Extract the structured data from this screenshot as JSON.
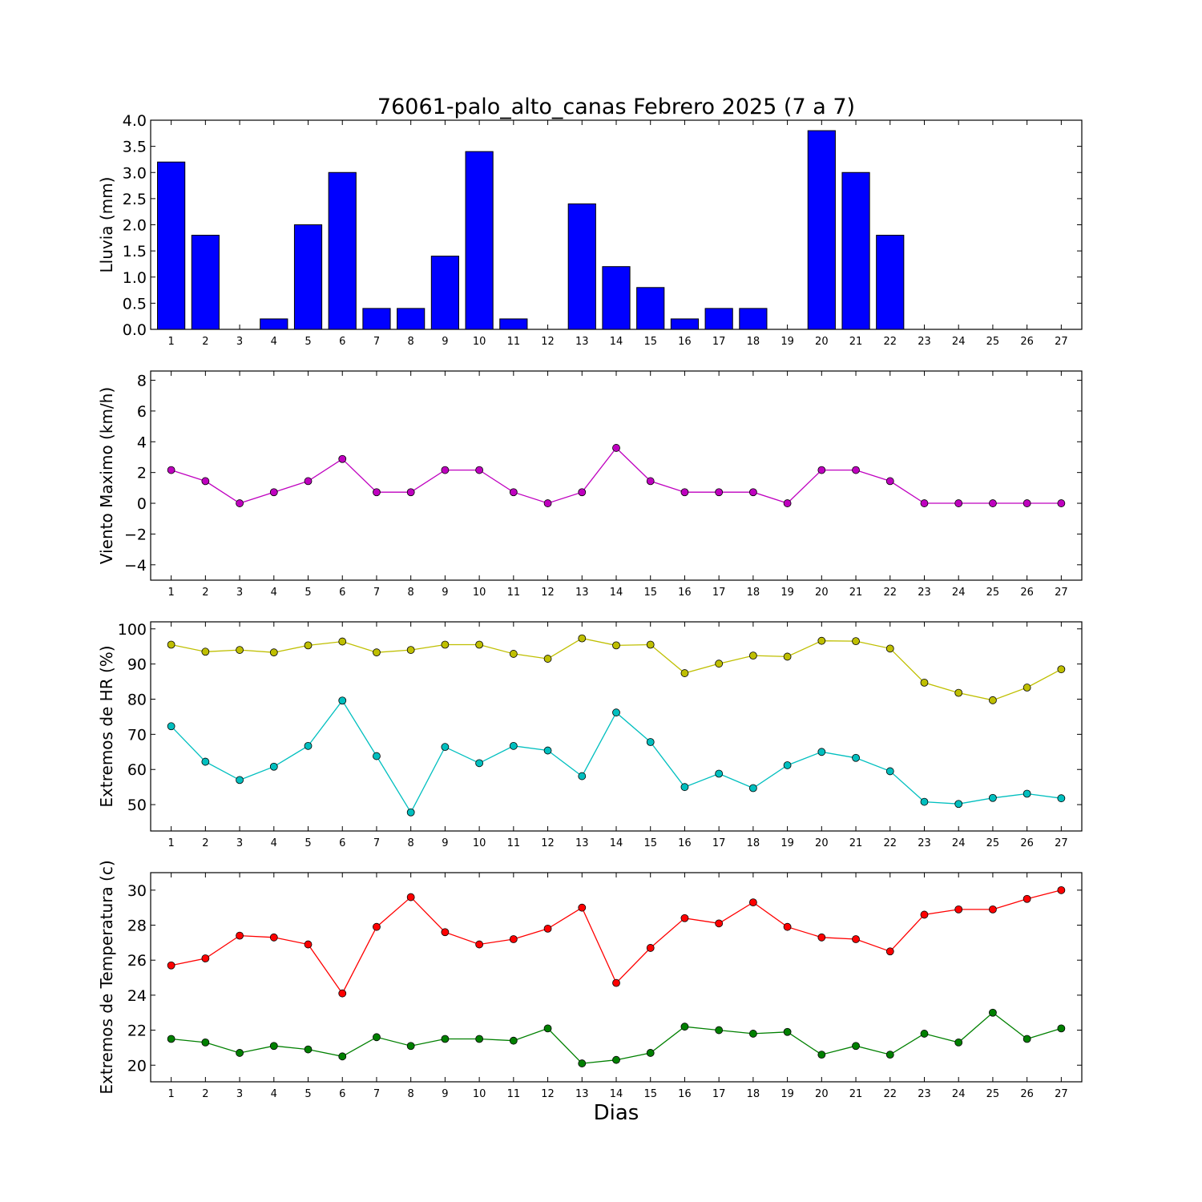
{
  "title": "76061-palo_alto_canas Febrero 2025  (7 a 7)",
  "xlabel": "Dias",
  "chart_data": [
    {
      "type": "bar",
      "ylabel": "Lluvia (mm)",
      "ylim": [
        0,
        4
      ],
      "yticks": [
        "0.0",
        "0.5",
        "1.0",
        "1.5",
        "2.0",
        "2.5",
        "3.0",
        "3.5",
        "4.0"
      ],
      "categories": [
        "1",
        "2",
        "3",
        "4",
        "5",
        "6",
        "7",
        "8",
        "9",
        "10",
        "11",
        "12",
        "13",
        "14",
        "15",
        "16",
        "17",
        "18",
        "19",
        "20",
        "21",
        "22",
        "23",
        "24",
        "25",
        "26",
        "27"
      ],
      "series": [
        {
          "color": "#0000ff",
          "values": [
            3.2,
            1.8,
            0,
            0.2,
            2.0,
            3.0,
            0.4,
            0.4,
            1.4,
            3.4,
            0.2,
            0,
            2.4,
            1.2,
            0.8,
            0.2,
            0.4,
            0.4,
            0,
            3.8,
            3.0,
            1.8,
            0,
            0,
            0,
            0,
            0
          ]
        }
      ]
    },
    {
      "type": "line",
      "ylabel": "Viento Maximo (km/h)",
      "ylim": [
        -5,
        8.6
      ],
      "yticks": [
        "−4",
        "−2",
        "0",
        "2",
        "4",
        "6",
        "8"
      ],
      "ytick_values": [
        -4,
        -2,
        0,
        2,
        4,
        6,
        8
      ],
      "categories": [
        "1",
        "2",
        "3",
        "4",
        "5",
        "6",
        "7",
        "8",
        "9",
        "10",
        "11",
        "12",
        "13",
        "14",
        "15",
        "16",
        "17",
        "18",
        "19",
        "20",
        "21",
        "22",
        "23",
        "24",
        "25",
        "26",
        "27"
      ],
      "series": [
        {
          "color": "#bf00bf",
          "values": [
            2.16,
            1.44,
            0,
            0.72,
            1.44,
            2.88,
            0.72,
            0.72,
            2.16,
            2.16,
            0.72,
            0,
            0.72,
            3.6,
            1.44,
            0.72,
            0.72,
            0.72,
            0,
            2.16,
            2.16,
            1.44,
            0,
            0,
            0,
            0,
            0
          ]
        }
      ]
    },
    {
      "type": "line",
      "ylabel": "Extremos de HR (%)",
      "ylim": [
        42.5,
        102
      ],
      "yticks": [
        "50",
        "60",
        "70",
        "80",
        "90",
        "100"
      ],
      "ytick_values": [
        50,
        60,
        70,
        80,
        90,
        100
      ],
      "categories": [
        "1",
        "2",
        "3",
        "4",
        "5",
        "6",
        "7",
        "8",
        "9",
        "10",
        "11",
        "12",
        "13",
        "14",
        "15",
        "16",
        "17",
        "18",
        "19",
        "20",
        "21",
        "22",
        "23",
        "24",
        "25",
        "26",
        "27"
      ],
      "series": [
        {
          "color": "#bfbf00",
          "values": [
            95.5,
            93.5,
            94,
            93.3,
            95.3,
            96.4,
            93.3,
            94,
            95.5,
            95.5,
            92.9,
            91.5,
            97.3,
            95.3,
            95.5,
            87.4,
            90.1,
            92.4,
            92.1,
            96.6,
            96.5,
            94.4,
            84.7,
            81.8,
            79.7,
            83.3,
            88.5
          ]
        },
        {
          "color": "#00bfbf",
          "values": [
            72.3,
            62.2,
            57,
            60.8,
            66.7,
            79.6,
            63.8,
            47.8,
            66.4,
            61.8,
            66.7,
            65.4,
            58.1,
            76.2,
            67.8,
            55,
            58.8,
            54.7,
            61.2,
            65,
            63.3,
            59.5,
            50.8,
            50.2,
            51.9,
            53.1,
            51.8
          ]
        }
      ]
    },
    {
      "type": "line",
      "ylabel": "Extremos de Temperatura (c)",
      "ylim": [
        19.05,
        31
      ],
      "yticks": [
        "20",
        "22",
        "24",
        "26",
        "28",
        "30"
      ],
      "ytick_values": [
        20,
        22,
        24,
        26,
        28,
        30
      ],
      "categories": [
        "1",
        "2",
        "3",
        "4",
        "5",
        "6",
        "7",
        "8",
        "9",
        "10",
        "11",
        "12",
        "13",
        "14",
        "15",
        "16",
        "17",
        "18",
        "19",
        "20",
        "21",
        "22",
        "23",
        "24",
        "25",
        "26",
        "27"
      ],
      "series": [
        {
          "color": "#ff0000",
          "values": [
            25.7,
            26.1,
            27.4,
            27.3,
            26.9,
            24.1,
            27.9,
            29.6,
            27.6,
            26.9,
            27.2,
            27.8,
            29,
            24.7,
            26.7,
            28.4,
            28.1,
            29.3,
            27.9,
            27.3,
            27.2,
            26.5,
            28.6,
            28.9,
            28.9,
            29.5,
            30
          ]
        },
        {
          "color": "#008000",
          "values": [
            21.5,
            21.3,
            20.7,
            21.1,
            20.9,
            20.5,
            21.6,
            21.1,
            21.5,
            21.5,
            21.4,
            22.1,
            20.1,
            20.3,
            20.7,
            22.2,
            22,
            21.8,
            21.9,
            20.6,
            21.1,
            20.6,
            21.8,
            21.3,
            23,
            21.5,
            22.1
          ]
        }
      ]
    }
  ]
}
